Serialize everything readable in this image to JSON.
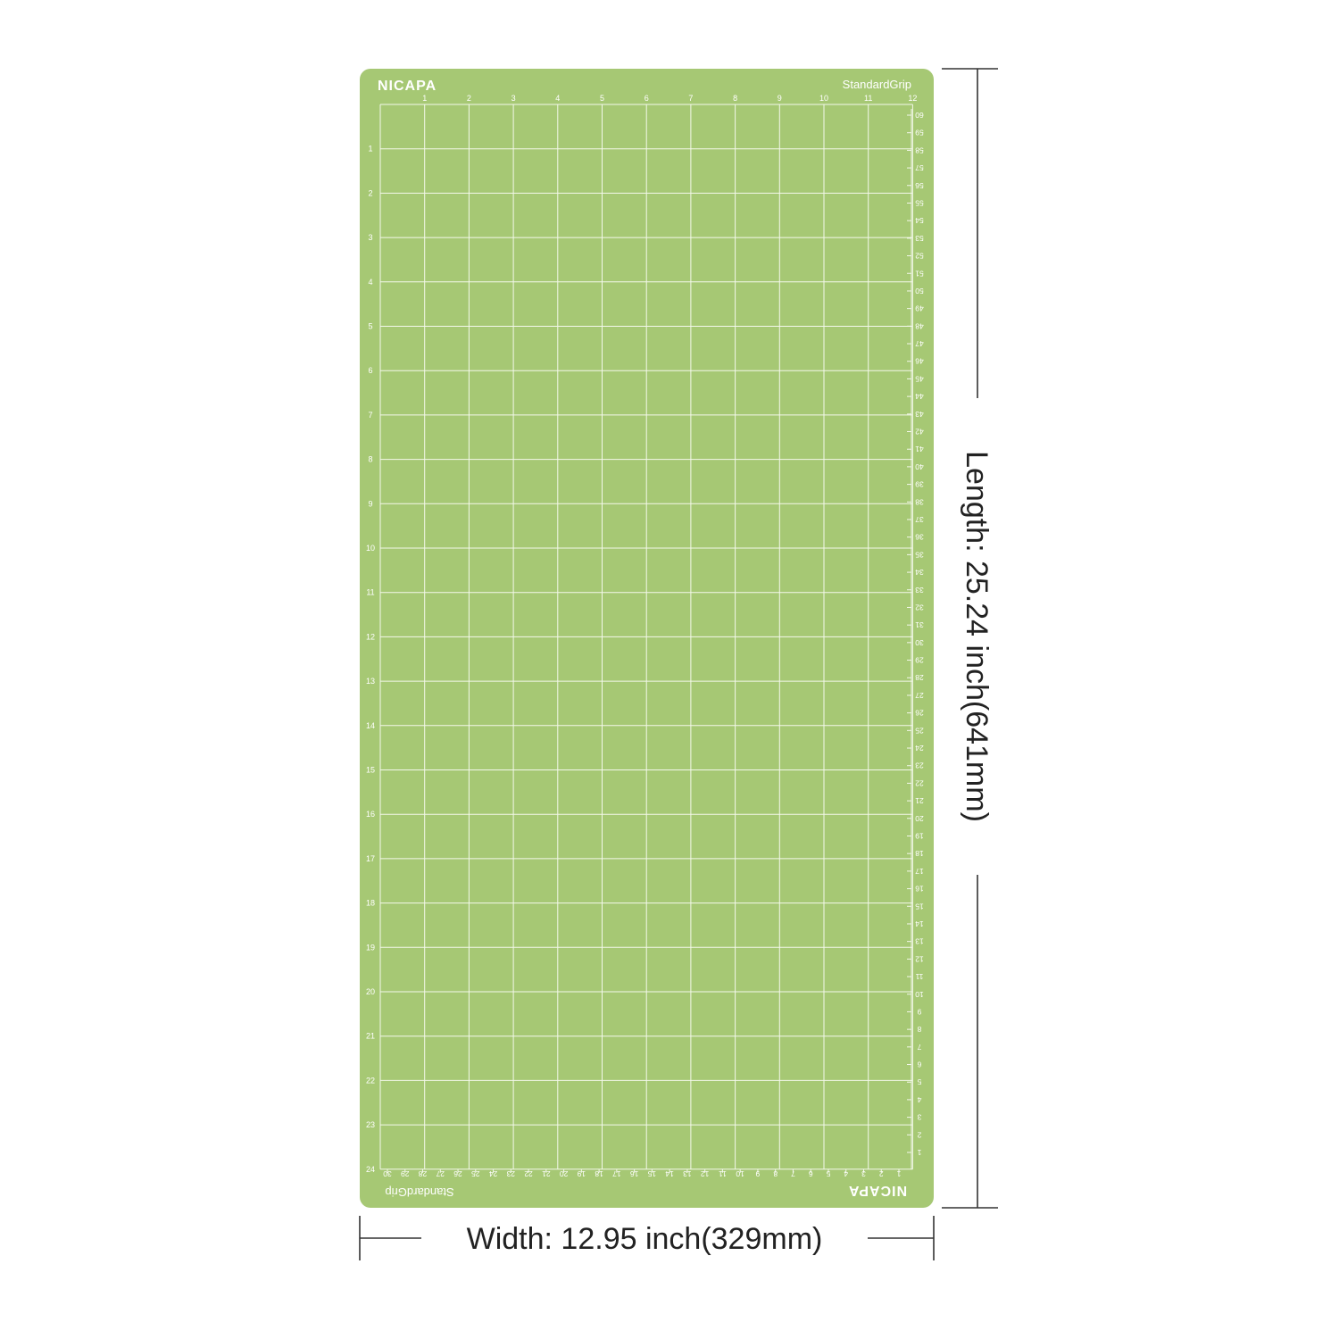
{
  "mat": {
    "brand": "NICAPA",
    "grip": "StandardGrip",
    "color": "#a6c874",
    "line_color": "#f3f8ea",
    "label_color": "#ffffff"
  },
  "rulers": {
    "top": [
      "1",
      "2",
      "3",
      "4",
      "5",
      "6",
      "7",
      "8",
      "9",
      "10",
      "11",
      "12"
    ],
    "left": [
      "1",
      "2",
      "3",
      "4",
      "5",
      "6",
      "7",
      "8",
      "9",
      "10",
      "11",
      "12",
      "13",
      "14",
      "15",
      "16",
      "17",
      "18",
      "19",
      "20",
      "21",
      "22",
      "23",
      "24"
    ],
    "right_cm": [
      "60",
      "59",
      "58",
      "57",
      "56",
      "55",
      "54",
      "53",
      "52",
      "51",
      "50",
      "49",
      "48",
      "47",
      "46",
      "45",
      "44",
      "43",
      "42",
      "41",
      "40",
      "39",
      "38",
      "37",
      "36",
      "35",
      "34",
      "33",
      "32",
      "31",
      "30",
      "29",
      "28",
      "27",
      "26",
      "25",
      "24",
      "23",
      "22",
      "21",
      "20",
      "19",
      "18",
      "17",
      "16",
      "15",
      "14",
      "13",
      "12",
      "11",
      "10",
      "9",
      "8",
      "7",
      "6",
      "5",
      "4",
      "3",
      "2",
      "1"
    ],
    "bottom_cm": [
      "30",
      "29",
      "28",
      "27",
      "26",
      "25",
      "24",
      "23",
      "22",
      "21",
      "20",
      "19",
      "18",
      "17",
      "16",
      "15",
      "14",
      "13",
      "12",
      "11",
      "10",
      "9",
      "8",
      "7",
      "6",
      "5",
      "4",
      "3",
      "2",
      "1"
    ]
  },
  "dimensions": {
    "width_label": "Width: 12.95 inch(329mm)",
    "length_label": "Length: 25.24 inch(641mm)",
    "line_color": "#333333"
  }
}
